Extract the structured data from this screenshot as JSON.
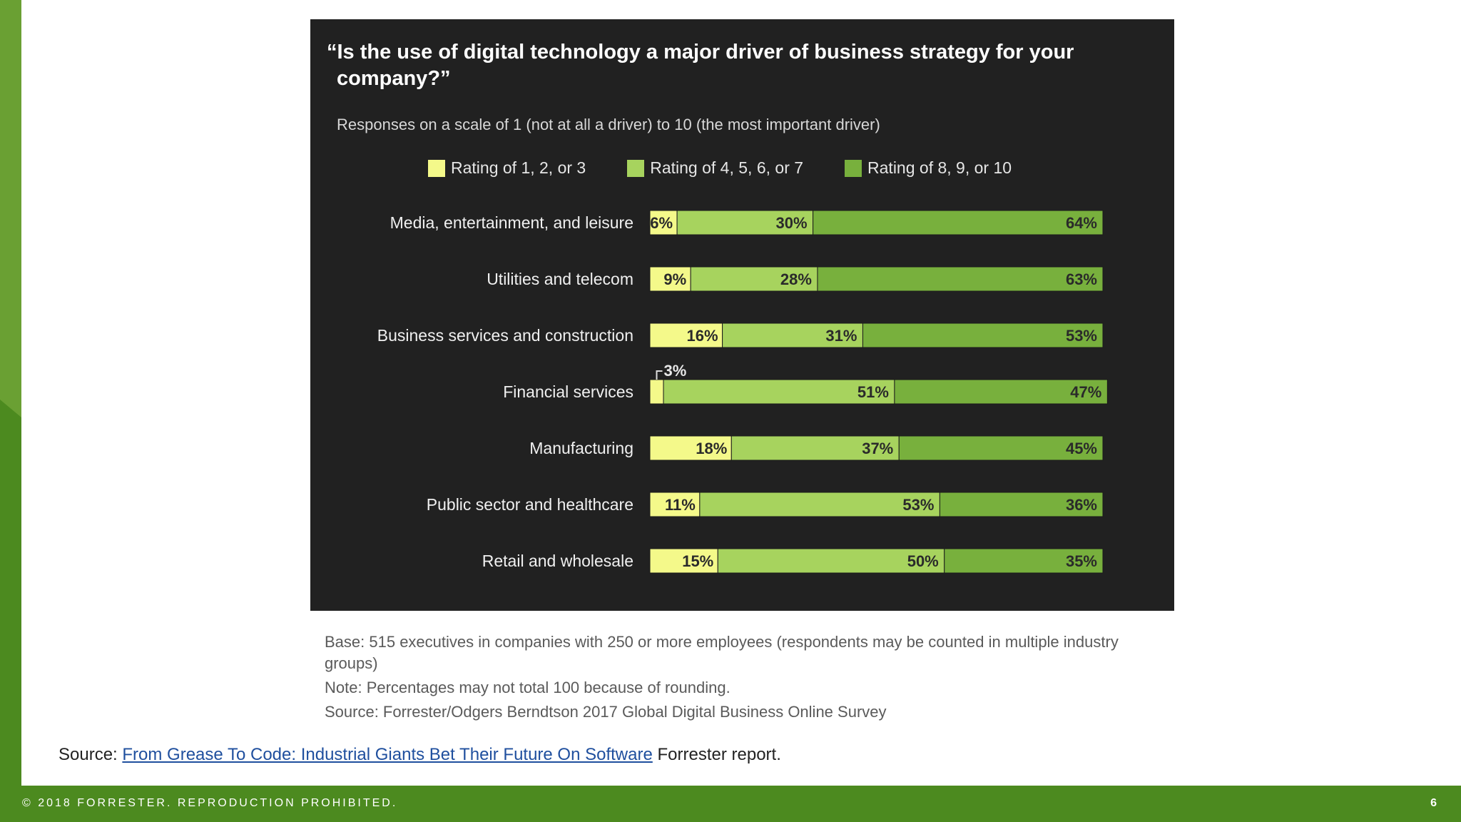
{
  "colors": {
    "low": "#f4f98a",
    "mid": "#a7d35e",
    "high": "#78b03d",
    "panel": "#212121",
    "brand_green": "#4c8a1f"
  },
  "chart_data": {
    "type": "bar",
    "orientation": "horizontal",
    "stacked": true,
    "title": "“Is the use of digital technology a major driver of business strategy for your company?”",
    "subtitle": "Responses on a scale of 1 (not at all a driver) to 10 (the most important driver)",
    "categories": [
      "Media, entertainment, and leisure",
      "Utilities and telecom",
      "Business services and construction",
      "Financial services",
      "Manufacturing",
      "Public sector and healthcare",
      "Retail and wholesale"
    ],
    "series": [
      {
        "name": "Rating of 1, 2, or 3",
        "values": [
          6,
          9,
          16,
          3,
          18,
          11,
          15
        ]
      },
      {
        "name": "Rating of 4, 5, 6, or 7",
        "values": [
          30,
          28,
          31,
          51,
          37,
          53,
          50
        ]
      },
      {
        "name": "Rating of 8, 9, or 10",
        "values": [
          64,
          63,
          53,
          47,
          45,
          36,
          35
        ]
      }
    ],
    "value_suffix": "%",
    "legend_position": "top",
    "grid": false
  },
  "footnotes": {
    "base": "Base: 515 executives in companies with 250 or more employees (respondents may be counted in multiple industry groups)",
    "note": "Note: Percentages may not total 100 because of rounding.",
    "source": "Source: Forrester/Odgers Berndtson 2017 Global Digital Business Online Survey"
  },
  "source_line": {
    "prefix": "Source: ",
    "link_text": "From Grease To Code: Industrial Giants Bet Their Future On Software",
    "suffix": " Forrester report."
  },
  "footer": {
    "copyright": "© 2018 FORRESTER. REPRODUCTION PROHIBITED.",
    "page_number": "6"
  }
}
